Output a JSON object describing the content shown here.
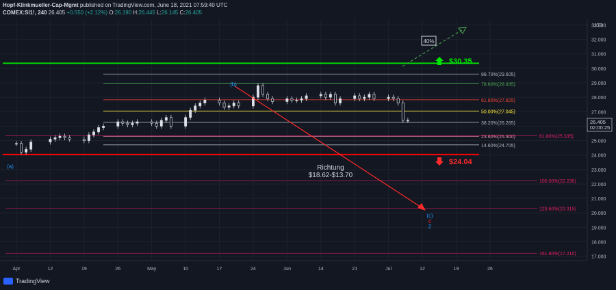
{
  "header": {
    "publisher": "Hopf-Klinkmueller-Cap-Mgmt",
    "published_text": "published on TradingView.com, June 18, 2021 07:59:40 UTC",
    "symbol": "COMEX:SI1!, 240",
    "last": "26.405",
    "change": "+0.550 (+2.12%)",
    "o_label": "O:",
    "o": "26.190",
    "h_label": "H:",
    "h": "26.445",
    "l_label": "L:",
    "l": "26.145",
    "c_label": "C:",
    "c": "26.405"
  },
  "footer": {
    "brand": "TradingView"
  },
  "price_axis": {
    "currency": "USD",
    "last_price": "26.405",
    "countdown": "02:00:25"
  },
  "colors": {
    "background": "#131722",
    "bull": "#26a69a",
    "green_level": "#00e600",
    "red_level": "#ff0000",
    "fib_pink": "#e91e63",
    "grid": "#1e222d"
  },
  "levels": {
    "upper_target": "$30.35",
    "lower_target": "$24.04",
    "upside_label": "40%",
    "note_title": "Richtung",
    "note_range": "$18.62-$13.70"
  },
  "wave_labels": {
    "a": "(a)",
    "b": "(b)",
    "c_blue": "(c)",
    "c_red": "c",
    "two": "2"
  },
  "chart_data": {
    "type": "line",
    "title": "",
    "xlabel": "",
    "ylabel": "USD",
    "ylim": [
      16.7,
      33.4
    ],
    "y_ticks": [
      17.0,
      18.0,
      19.0,
      20.0,
      21.0,
      22.0,
      23.0,
      24.0,
      25.0,
      26.0,
      27.0,
      28.0,
      29.0,
      30.0,
      31.0,
      32.0,
      33.0
    ],
    "y_tick_labels": [
      "17.000",
      "18.000",
      "19.000",
      "20.000",
      "21.000",
      "22.000",
      "23.000",
      "24.000",
      "25.000",
      "26.000",
      "27.000",
      "28.000",
      "29.000",
      "30.000",
      "31.000",
      "32.000",
      "33.000"
    ],
    "x_tick_labels": [
      "Apr",
      "12",
      "19",
      "26",
      "May",
      "10",
      "17",
      "24",
      "Jun",
      "14",
      "21",
      "Jul",
      "12",
      "19",
      "26"
    ],
    "x_tick_dates": [
      "2021-03-29",
      "2021-04-05",
      "2021-04-12",
      "2021-04-19",
      "2021-04-26",
      "2021-05-03",
      "2021-05-10",
      "2021-05-17",
      "2021-05-24",
      "2021-05-31",
      "2021-06-07",
      "2021-06-14",
      "2021-06-21",
      "2021-06-28",
      "2021-07-05"
    ],
    "series": [
      {
        "x": [
          "2021-03-29",
          "2021-03-30",
          "2021-03-31",
          "2021-04-01",
          "2021-04-05",
          "2021-04-06",
          "2021-04-07",
          "2021-04-08",
          "2021-04-09",
          "2021-04-12",
          "2021-04-13",
          "2021-04-14",
          "2021-04-15",
          "2021-04-16",
          "2021-04-19",
          "2021-04-20",
          "2021-04-21",
          "2021-04-22",
          "2021-04-23",
          "2021-04-26",
          "2021-04-27",
          "2021-04-28",
          "2021-04-29",
          "2021-04-30",
          "2021-05-03",
          "2021-05-04",
          "2021-05-05",
          "2021-05-06",
          "2021-05-07",
          "2021-05-10",
          "2021-05-11",
          "2021-05-12",
          "2021-05-13",
          "2021-05-14",
          "2021-05-17",
          "2021-05-18",
          "2021-05-19",
          "2021-05-20",
          "2021-05-21",
          "2021-05-24",
          "2021-05-25",
          "2021-05-26",
          "2021-05-27",
          "2021-05-28",
          "2021-05-31",
          "2021-06-01",
          "2021-06-02",
          "2021-06-03",
          "2021-06-04",
          "2021-06-07",
          "2021-06-08",
          "2021-06-09",
          "2021-06-10",
          "2021-06-11",
          "2021-06-14",
          "2021-06-15",
          "2021-06-16",
          "2021-06-17",
          "2021-06-18"
        ],
        "values": [
          24.8,
          24.2,
          24.4,
          24.9,
          25.1,
          25.2,
          25.3,
          25.2,
          25.1,
          25.0,
          25.4,
          25.6,
          25.9,
          26.0,
          26.3,
          26.2,
          26.1,
          26.2,
          26.3,
          26.2,
          26.0,
          26.4,
          26.6,
          26.0,
          26.6,
          27.1,
          27.4,
          27.6,
          27.8,
          27.6,
          27.3,
          27.4,
          27.6,
          27.4,
          28.0,
          28.8,
          28.2,
          27.9,
          27.7,
          27.9,
          27.8,
          27.8,
          27.9,
          28.1,
          28.2,
          28.0,
          28.2,
          27.6,
          27.9,
          28.1,
          27.9,
          28.0,
          28.2,
          27.9,
          28.0,
          27.9,
          27.6,
          26.4,
          26.4
        ]
      }
    ],
    "fib_levels": [
      {
        "label": "88.70%(29.605)",
        "value": 29.605,
        "color": "#b2b5be"
      },
      {
        "label": "78.60%(28.935)",
        "value": 28.935,
        "color": "#4caf50"
      },
      {
        "label": "61.80%(27.825)",
        "value": 27.825,
        "color": "#f44336"
      },
      {
        "label": "50.00%(27.045)",
        "value": 27.045,
        "color": "#ffeb3b"
      },
      {
        "label": "38.20%(26.265)",
        "value": 26.265,
        "color": "#b2b5be"
      },
      {
        "label": "23.60%(25.300)",
        "value": 25.3,
        "color": "#f48fb1"
      },
      {
        "label": "14.60%(24.705)",
        "value": 24.705,
        "color": "#b2b5be"
      }
    ],
    "ext_levels": [
      {
        "label": "61.80%(25.335)",
        "value": 25.335
      },
      {
        "label": "100.00%(22.230)",
        "value": 22.23
      },
      {
        "label": "123.60%(20.315)",
        "value": 20.315
      },
      {
        "label": "161.80%(17.210)",
        "value": 17.21
      }
    ],
    "horizontal_levels": [
      {
        "value": 30.35,
        "color": "#00e600"
      },
      {
        "value": 24.04,
        "color": "#ff0000"
      }
    ],
    "grid": true,
    "legend": "none"
  }
}
